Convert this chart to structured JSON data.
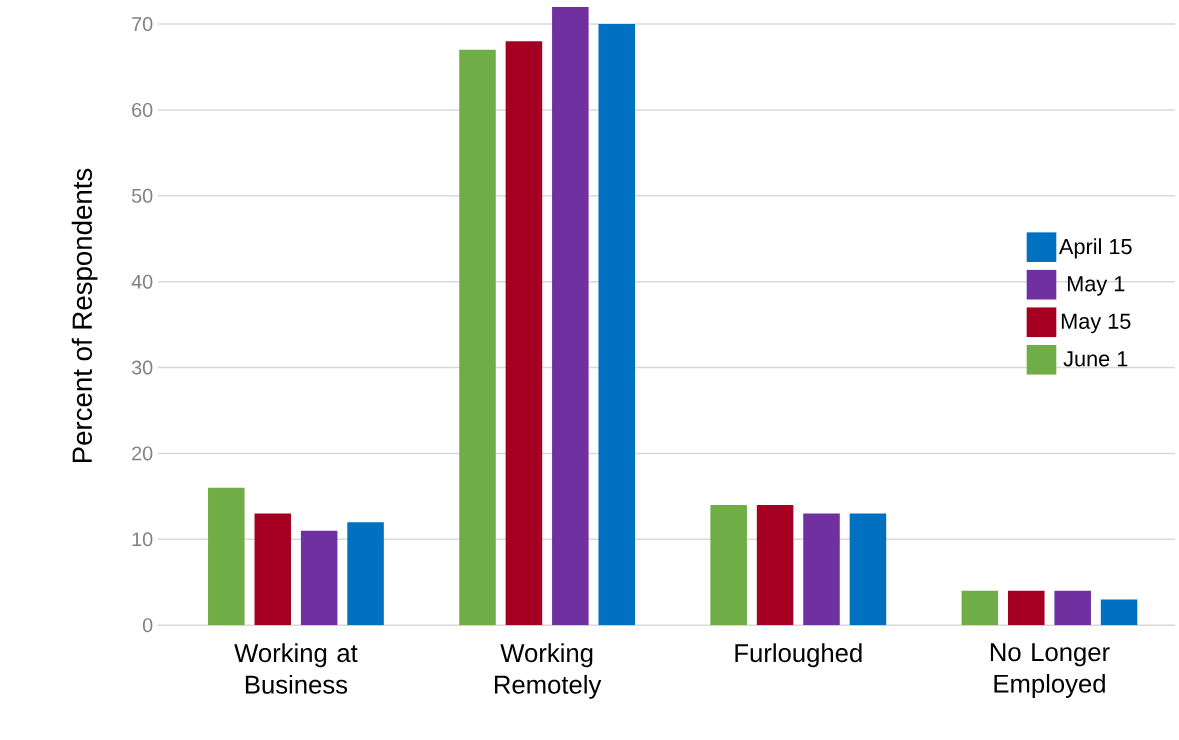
{
  "chart_data": {
    "type": "bar",
    "ylabel": "Percent of Respondents",
    "categories": [
      "Working at Business",
      "Working Remotely",
      "Furloughed",
      "No Longer Employed"
    ],
    "series": [
      {
        "name": "June 1",
        "color": "#70ad47",
        "values": [
          16,
          67,
          14,
          4
        ]
      },
      {
        "name": "May 15",
        "color": "#a50021",
        "values": [
          13,
          68,
          14,
          4
        ]
      },
      {
        "name": "May 1",
        "color": "#7030a0",
        "values": [
          11,
          72,
          13,
          4
        ]
      },
      {
        "name": "April 15",
        "color": "#0070c0",
        "values": [
          12,
          70,
          13,
          3
        ]
      }
    ],
    "ylim": [
      0,
      72
    ],
    "yticks": [
      0,
      10,
      20,
      30,
      40,
      50,
      60,
      70
    ],
    "grid": "y",
    "legend": "right"
  }
}
